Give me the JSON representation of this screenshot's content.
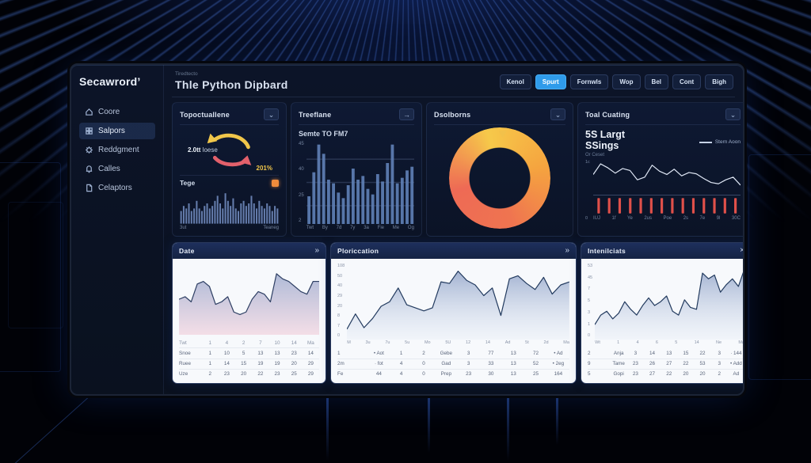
{
  "dashboard": {
    "logo": "Secawrord’",
    "header": {
      "eyebrow": "Tiredtecto",
      "title": "Thle Python Dipbard",
      "buttons": [
        {
          "label": "Kenol",
          "active": false
        },
        {
          "label": "Spurt",
          "active": true
        },
        {
          "label": "Fornwls",
          "active": false
        },
        {
          "label": "Wop",
          "active": false
        },
        {
          "label": "Bel",
          "active": false
        },
        {
          "label": "Cont",
          "active": false
        },
        {
          "label": "Bigh",
          "active": false
        }
      ]
    },
    "sidebar": {
      "items": [
        {
          "label": "Coore",
          "icon": "home",
          "active": false
        },
        {
          "label": "Salpors",
          "icon": "grid",
          "active": true
        },
        {
          "label": "Reddgment",
          "icon": "gear",
          "active": false
        },
        {
          "label": "Calles",
          "icon": "bell",
          "active": false
        },
        {
          "label": "Celaptors",
          "icon": "doc",
          "active": false
        }
      ]
    },
    "colors": {
      "accent": "#2f9bea",
      "orange": "#f08c3c",
      "red_tick": "#e0504a"
    }
  },
  "cards": {
    "fluctuations": {
      "title": "Topoctuallene",
      "center_value": "2.0tt",
      "center_label": "loese",
      "percent": "201%",
      "sub_title": "Tege",
      "bar_labels": [
        "3ut",
        "Teaneg"
      ],
      "cycle_colors": [
        "#f0c64a",
        "#e2606b"
      ]
    },
    "timeline": {
      "title": "Treeflane",
      "arrow_icon": "→",
      "subtitle": "Semte TO FM7"
    },
    "donut": {
      "title": "Dsolborns"
    },
    "coating": {
      "title": "Toal Cuating",
      "headline": "5S Largt\nSSings",
      "subtext": "Or Ceset",
      "legend": "Stern Aoon",
      "y_labels": [
        "1c",
        "0"
      ]
    }
  },
  "bottom_cards": [
    {
      "title": "Date",
      "icon": "»"
    },
    {
      "title": "Ploriccation",
      "icon": "»"
    },
    {
      "title": "Intenilciats",
      "icon": "×"
    }
  ],
  "chart_data": [
    {
      "id": "tege-bars",
      "type": "bar",
      "title": "Tege",
      "values": [
        5,
        7,
        6,
        8,
        5,
        6,
        9,
        6,
        5,
        7,
        8,
        6,
        7,
        9,
        11,
        8,
        6,
        12,
        9,
        7,
        10,
        6,
        5,
        8,
        9,
        7,
        8,
        11,
        8,
        6,
        9,
        7,
        6,
        8,
        7,
        5,
        7,
        6
      ],
      "ylim": [
        0,
        13
      ],
      "color": "#6e87b8",
      "x_ticks": [
        "3ut",
        "Teaneg"
      ]
    },
    {
      "id": "timeline-bars",
      "type": "bar",
      "title": "Semte TO FM7",
      "values": [
        15,
        28,
        43,
        38,
        24,
        22,
        17,
        14,
        21,
        30,
        24,
        26,
        19,
        16,
        27,
        23,
        33,
        43,
        22,
        25,
        29,
        31
      ],
      "ylim": [
        0,
        45
      ],
      "color": "#5e7fb4",
      "grid": true,
      "y_ticks": [
        "45",
        "40",
        "25",
        "2"
      ],
      "x_ticks": [
        "Twt",
        "By",
        "7d",
        "7y",
        "3a",
        "Fie",
        "Me",
        "Og"
      ]
    },
    {
      "id": "deolborns-ring",
      "type": "donut",
      "values": [
        100
      ],
      "colors": [
        "#f6c94a",
        "#f5a43f",
        "#ef7450",
        "#ee6a55"
      ]
    },
    {
      "id": "coating-line",
      "type": "line",
      "values": [
        28,
        44,
        38,
        30,
        37,
        34,
        20,
        24,
        42,
        33,
        28,
        36,
        26,
        31,
        29,
        22,
        16,
        14,
        20,
        24,
        12
      ],
      "ylim": [
        0,
        50
      ],
      "stroke": "#dfe7f5",
      "stroke_width": 1.2,
      "x_ticks": [
        "IUJ",
        "1f",
        "Ye",
        "2us",
        "Poe",
        "2s",
        "7e",
        "9l",
        "30C"
      ]
    },
    {
      "id": "coating-ticks",
      "type": "ticks",
      "count": 14,
      "color": "#e0504a"
    },
    {
      "id": "date-area",
      "type": "area",
      "values": [
        14,
        15,
        13,
        20,
        21,
        19,
        12,
        13,
        15,
        9,
        8,
        9,
        14,
        17,
        16,
        13,
        24,
        22,
        21,
        19,
        17,
        16,
        21,
        21
      ],
      "ylim": [
        0,
        28
      ],
      "stroke": "#2e3f63",
      "stroke_width": 1.2,
      "fill_top": "rgba(115,135,185,0.55)",
      "fill_bottom": "rgba(240,195,210,0.50)",
      "table": {
        "first_is_header": true,
        "rows": [
          [
            "Twt",
            "1",
            "4",
            "2",
            "7",
            "10",
            "14",
            "Ma"
          ],
          [
            "Snoe",
            "1",
            "10",
            "5",
            "13",
            "13",
            "23",
            "14"
          ],
          [
            "Ruee",
            "1",
            "14",
            "15",
            "19",
            "19",
            "20",
            "29"
          ],
          [
            "Uze",
            "2",
            "23",
            "20",
            "22",
            "23",
            "25",
            "29"
          ]
        ]
      }
    },
    {
      "id": "plorication-area",
      "type": "area",
      "values": [
        7,
        17,
        8,
        14,
        22,
        25,
        34,
        23,
        21,
        19,
        21,
        38,
        37,
        45,
        39,
        36,
        29,
        34,
        16,
        40,
        42,
        37,
        33,
        41,
        30,
        36,
        38
      ],
      "ylim": [
        0,
        50
      ],
      "stroke": "#223a5e",
      "stroke_width": 1.2,
      "fill_top": "rgba(105,130,180,0.60)",
      "fill_bottom": "rgba(215,225,240,0.20)",
      "y_ticks": [
        "108",
        "50",
        "40",
        "29",
        "20",
        "8",
        "7",
        "0"
      ],
      "x_ticks": [
        "M",
        "3u",
        "7u",
        "5u",
        "Mo",
        "5U",
        "12",
        "14",
        "Ad",
        "5t",
        "2d",
        "Ma"
      ],
      "table": {
        "rows": [
          [
            "1",
            "• Aot",
            "1",
            "2",
            "Gebe",
            "3",
            "77",
            "13",
            "72",
            "• Ad"
          ],
          [
            "2m",
            "· fot",
            "4",
            "0",
            "Gad",
            "3",
            "33",
            "13",
            "52",
            "• 2eg"
          ],
          [
            "Fe",
            "44",
            "4",
            "0",
            "Prep",
            "23",
            "30",
            "13",
            "25",
            "164"
          ]
        ]
      }
    },
    {
      "id": "intenilciats-area",
      "type": "area",
      "values": [
        8,
        13,
        15,
        11,
        14,
        20,
        16,
        13,
        18,
        22,
        18,
        20,
        23,
        15,
        13,
        21,
        17,
        16,
        35,
        32,
        34,
        25,
        29,
        32,
        28,
        37
      ],
      "ylim": [
        0,
        40
      ],
      "stroke": "#223a5e",
      "stroke_width": 1.2,
      "fill_top": "rgba(105,130,180,0.60)",
      "fill_bottom": "rgba(215,225,240,0.20)",
      "y_ticks": [
        "53",
        "45",
        "7",
        "5",
        "3",
        "1",
        "0"
      ],
      "x_ticks": [
        "Wt",
        "1",
        "4",
        "6",
        "5",
        "14",
        "Ne",
        "Ma"
      ],
      "table": {
        "rows": [
          [
            "2",
            "Anja",
            "3",
            "14",
            "13",
            "15",
            "22",
            "3",
            "· 144"
          ],
          [
            "9",
            "Tame",
            "23",
            "26",
            "27",
            "22",
            "53",
            "3",
            "• Add"
          ],
          [
            "5",
            "Gopi",
            "23",
            "27",
            "22",
            "20",
            "20",
            "2",
            "Ad"
          ]
        ]
      }
    }
  ]
}
